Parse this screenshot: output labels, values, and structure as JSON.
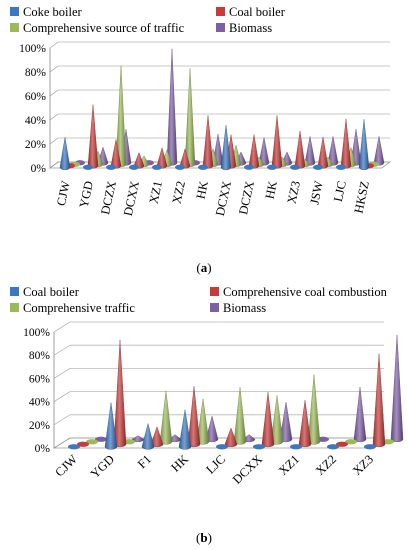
{
  "colors": {
    "blue": "#3a78c3",
    "red": "#c93a3a",
    "green": "#9bbb59",
    "purple": "#7e5fa6"
  },
  "chart_data": [
    {
      "type": "bar",
      "label": "(a)",
      "categories": [
        "CJW",
        "YGD",
        "DCZX",
        "DCXX",
        "XZ1",
        "XZ2",
        "HK",
        "DCXX",
        "DCZX",
        "HK",
        "XZ3",
        "JSW",
        "LJC",
        "HKSZ"
      ],
      "series": [
        {
          "name": "Coke boiler",
          "color": "blue",
          "values": [
            25,
            0,
            0,
            0,
            0,
            0,
            0,
            35,
            0,
            0,
            0,
            0,
            0,
            40
          ]
        },
        {
          "name": "Coal boiler",
          "color": "red",
          "values": [
            0,
            51,
            22,
            11,
            15,
            14,
            42,
            26,
            26,
            42,
            29,
            24,
            39,
            0
          ]
        },
        {
          "name": "Comprehensive source of traffic",
          "color": "green",
          "values": [
            0,
            11,
            82,
            7,
            12,
            80,
            13,
            16,
            6,
            6,
            4,
            6,
            14,
            0
          ]
        },
        {
          "name": "Biomass",
          "color": "purple",
          "values": [
            0,
            13,
            28,
            0,
            95,
            0,
            24,
            9,
            21,
            9,
            22,
            22,
            28,
            22
          ]
        }
      ],
      "y_ticks": [
        "0%",
        "20%",
        "40%",
        "60%",
        "80%",
        "100%"
      ],
      "ylim": [
        0,
        100
      ]
    },
    {
      "type": "bar",
      "label": "(b)",
      "categories": [
        "CJW",
        "YGD",
        "F1",
        "HK",
        "LJC",
        "DCXX",
        "XZ1",
        "XZ2",
        "XZ3"
      ],
      "series": [
        {
          "name": "Coal boiler",
          "color": "blue",
          "values": [
            0,
            38,
            20,
            32,
            0,
            0,
            0,
            0,
            0
          ]
        },
        {
          "name": "Comprehensive coal combustion",
          "color": "red",
          "values": [
            0,
            90,
            15,
            50,
            14,
            45,
            38,
            0,
            78
          ]
        },
        {
          "name": "Comprehensive traffic",
          "color": "green",
          "values": [
            0,
            0,
            44,
            37,
            47,
            40,
            58,
            0,
            0
          ]
        },
        {
          "name": "Biomass",
          "color": "purple",
          "values": [
            0,
            3,
            4,
            20,
            4,
            32,
            0,
            45,
            90
          ]
        }
      ],
      "y_ticks": [
        "0%",
        "20%",
        "40%",
        "60%",
        "80%",
        "100%"
      ],
      "ylim": [
        0,
        100
      ]
    }
  ]
}
